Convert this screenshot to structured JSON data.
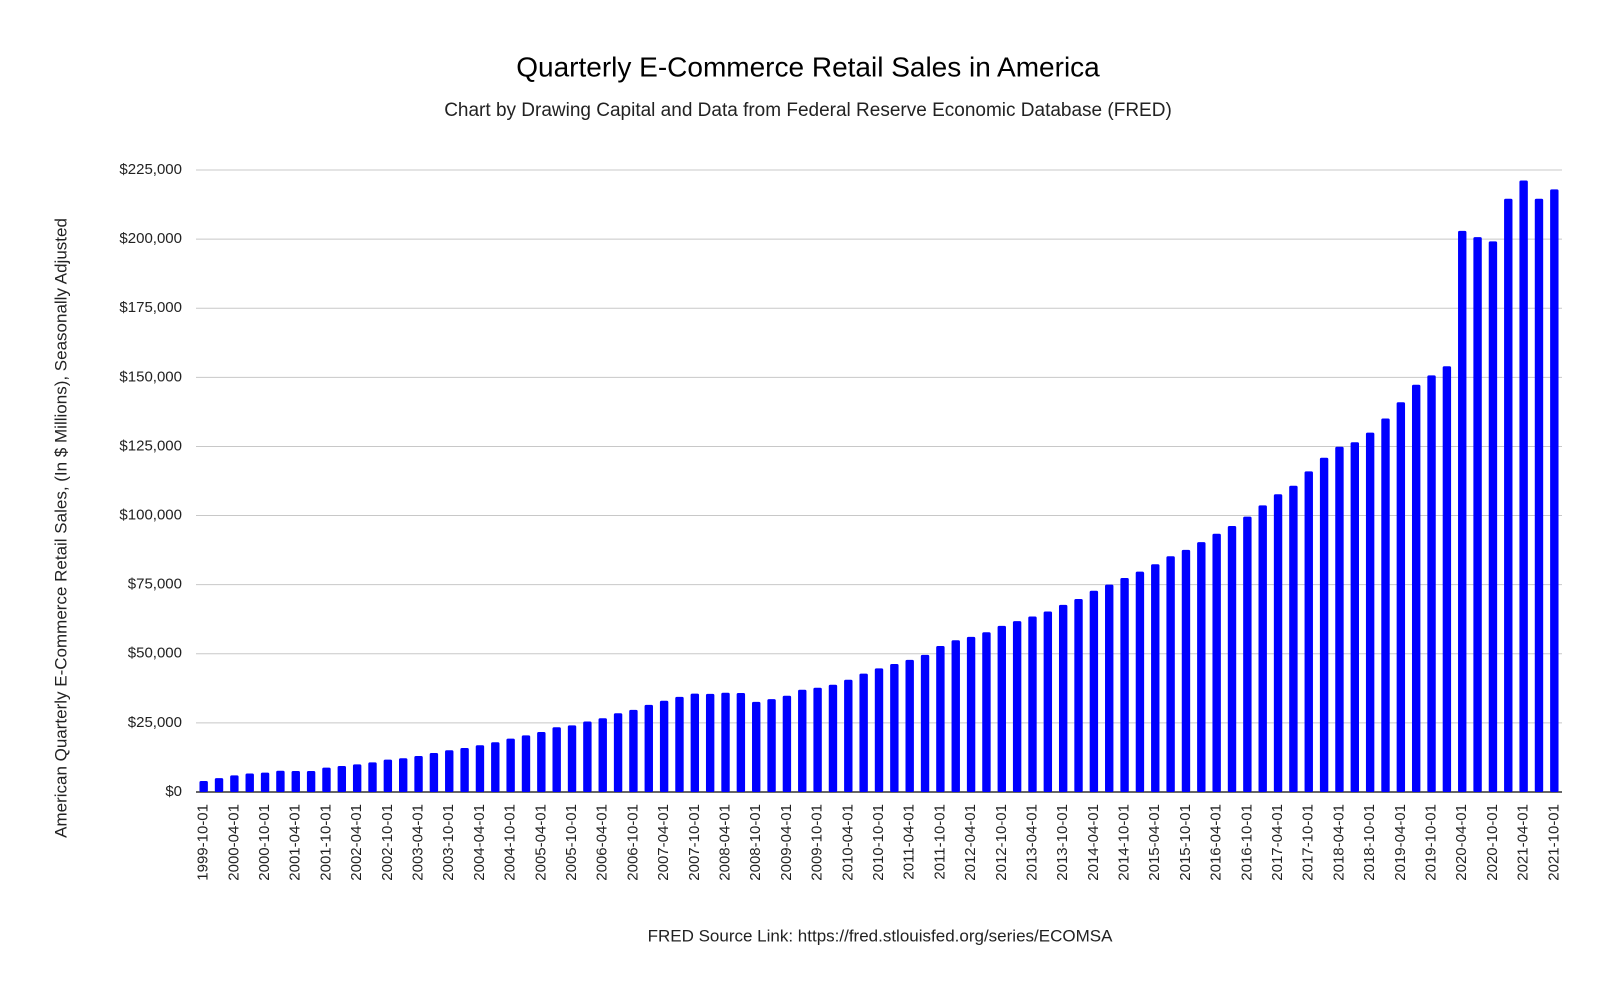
{
  "chart_data": {
    "type": "bar",
    "title": "Quarterly E-Commerce Retail Sales in America",
    "subtitle": "Chart by Drawing Capital and Data from Federal Reserve Economic Database (FRED)",
    "y_label": "American Quarterly E-Commerce Retail Sales, (In $ Millions), Seasonally Adjusted",
    "source": "FRED Source Link: https://fred.stlouisfed.org/series/ECOMSA",
    "color": "#0000ff",
    "grid": true,
    "categories": [
      "1999-10-01",
      null,
      "2000-04-01",
      null,
      "2000-10-01",
      null,
      "2001-04-01",
      null,
      "2001-10-01",
      null,
      "2002-04-01",
      null,
      "2002-10-01",
      null,
      "2003-04-01",
      null,
      "2003-10-01",
      null,
      "2004-04-01",
      null,
      "2004-10-01",
      null,
      "2005-04-01",
      null,
      "2005-10-01",
      null,
      "2006-04-01",
      null,
      "2006-10-01",
      null,
      "2007-04-01",
      null,
      "2007-10-01",
      null,
      "2008-04-01",
      null,
      "2008-10-01",
      null,
      "2009-04-01",
      null,
      "2009-10-01",
      null,
      "2010-04-01",
      null,
      "2010-10-01",
      null,
      "2011-04-01",
      null,
      "2011-10-01",
      null,
      "2012-04-01",
      null,
      "2012-10-01",
      null,
      "2013-04-01",
      null,
      "2013-10-01",
      null,
      "2014-04-01",
      null,
      "2014-10-01",
      null,
      "2015-04-01",
      null,
      "2015-10-01",
      null,
      "2016-04-01",
      null,
      "2016-10-01",
      null,
      "2017-04-01",
      null,
      "2017-10-01",
      null,
      "2018-04-01",
      null,
      "2018-10-01",
      null,
      "2019-04-01",
      null,
      "2019-10-01",
      null,
      "2020-04-01",
      null,
      "2020-10-01",
      null,
      "2021-04-01",
      null,
      "2021-10-01"
    ],
    "values": [
      4000,
      5000,
      6000,
      6700,
      7000,
      7700,
      7600,
      7600,
      8800,
      9400,
      10000,
      10700,
      11700,
      12200,
      13000,
      14100,
      15100,
      15900,
      16900,
      18000,
      19300,
      20500,
      21700,
      23400,
      24100,
      25500,
      26700,
      28500,
      29700,
      31500,
      33000,
      34400,
      35600,
      35500,
      35900,
      35800,
      32600,
      33600,
      34800,
      37000,
      37700,
      38800,
      40600,
      42800,
      44700,
      46300,
      47800,
      49600,
      52800,
      54900,
      56100,
      57800,
      60100,
      61800,
      63500,
      65300,
      67700,
      69800,
      72800,
      75000,
      77400,
      79700,
      82400,
      85300,
      87600,
      90400,
      93400,
      96200,
      99600,
      103700,
      107700,
      110800,
      116000,
      120900,
      124900,
      126500,
      130000,
      135100,
      141000,
      147300,
      150700,
      154000,
      203000,
      200700,
      199200,
      214600,
      221200,
      214600,
      218000
    ],
    "ylim": [
      0,
      225000
    ],
    "yticks": [
      {
        "value": 0,
        "label": "$0"
      },
      {
        "value": 25000,
        "label": "$25,000"
      },
      {
        "value": 50000,
        "label": "$50,000"
      },
      {
        "value": 75000,
        "label": "$75,000"
      },
      {
        "value": 100000,
        "label": "$100,000"
      },
      {
        "value": 125000,
        "label": "$125,000"
      },
      {
        "value": 150000,
        "label": "$150,000"
      },
      {
        "value": 175000,
        "label": "$175,000"
      },
      {
        "value": 200000,
        "label": "$200,000"
      },
      {
        "value": 225000,
        "label": "$225,000"
      }
    ]
  }
}
